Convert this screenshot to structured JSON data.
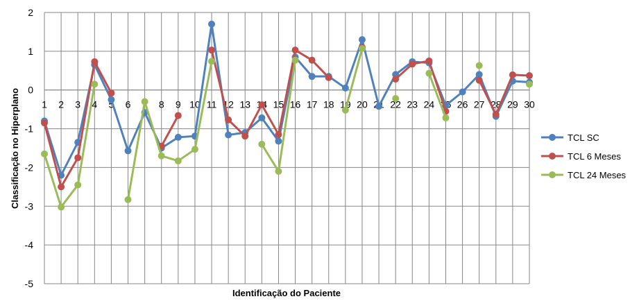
{
  "chart_data": {
    "type": "line",
    "title": "",
    "xlabel": "Identificação do Paciente",
    "ylabel": "Classificação no Hiperplano",
    "ylim": [
      -5,
      2
    ],
    "yticks": [
      "-5",
      "-4",
      "-3",
      "-2",
      "-1",
      "0",
      "1",
      "2"
    ],
    "categories": [
      "1",
      "2",
      "3",
      "4",
      "5",
      "6",
      "7",
      "8",
      "9",
      "10",
      "11",
      "12",
      "13",
      "14",
      "15",
      "16",
      "17",
      "18",
      "19",
      "20",
      "21",
      "22",
      "23",
      "24",
      "25",
      "26",
      "27",
      "28",
      "29",
      "30"
    ],
    "grid": true,
    "legend_position": "right",
    "series": [
      {
        "name": "TCL SC",
        "color": "#4F81BD",
        "values": [
          -0.8,
          -2.2,
          -1.35,
          0.65,
          -0.25,
          -1.57,
          -0.58,
          -1.5,
          -1.22,
          -1.19,
          1.7,
          -1.16,
          -1.1,
          -0.72,
          -1.32,
          0.85,
          0.35,
          0.35,
          0.05,
          1.3,
          -0.42,
          0.4,
          0.73,
          0.7,
          -0.4,
          -0.05,
          0.4,
          -0.68,
          0.23,
          0.2
        ]
      },
      {
        "name": "TCL 6 Meses",
        "color": "#C0504D",
        "values": [
          -0.85,
          -2.5,
          -1.75,
          0.73,
          -0.08,
          null,
          null,
          -1.45,
          -0.66,
          null,
          1.03,
          -0.77,
          -1.19,
          -0.38,
          -1.15,
          1.03,
          0.77,
          0.32,
          null,
          1.1,
          null,
          0.28,
          0.67,
          0.75,
          -0.55,
          null,
          0.25,
          -0.63,
          0.39,
          0.37
        ]
      },
      {
        "name": "TCL 24 Meses",
        "color": "#9BBB59",
        "values": [
          -1.65,
          -3.02,
          -2.45,
          0.15,
          null,
          -2.83,
          -0.3,
          -1.7,
          -1.83,
          -1.53,
          0.74,
          null,
          null,
          -1.4,
          -2.1,
          0.77,
          null,
          null,
          -0.52,
          1.07,
          null,
          -0.22,
          null,
          0.43,
          -0.72,
          null,
          0.63,
          null,
          null,
          0.15
        ]
      }
    ]
  }
}
